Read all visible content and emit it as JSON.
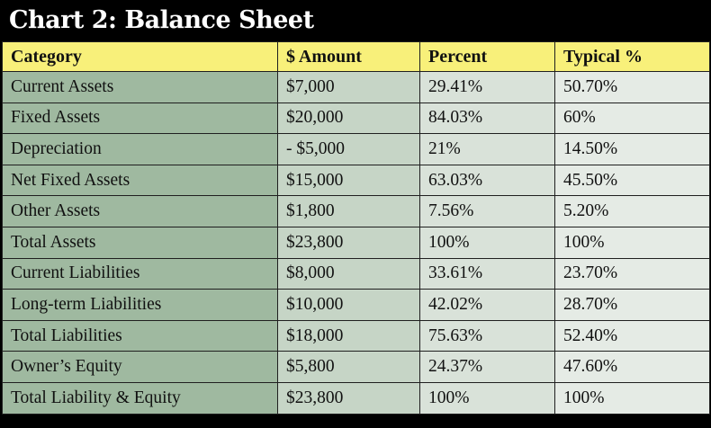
{
  "chart_data": {
    "type": "table",
    "title": "Chart 2: Balance Sheet",
    "columns": [
      "Category",
      "$ Amount",
      "Percent",
      "Typical %"
    ],
    "rows": [
      [
        "Current Assets",
        "$7,000",
        "29.41%",
        "50.70%"
      ],
      [
        "Fixed Assets",
        "$20,000",
        "84.03%",
        "60%"
      ],
      [
        "Depreciation",
        "- $5,000",
        "21%",
        "14.50%"
      ],
      [
        "Net Fixed Assets",
        "$15,000",
        "63.03%",
        "45.50%"
      ],
      [
        "Other Assets",
        "$1,800",
        "7.56%",
        "5.20%"
      ],
      [
        "Total Assets",
        "$23,800",
        "100%",
        "100%"
      ],
      [
        "Current Liabilities",
        "$8,000",
        "33.61%",
        "23.70%"
      ],
      [
        "Long-term Liabilities",
        "$10,000",
        "42.02%",
        "28.70%"
      ],
      [
        "Total Liabilities",
        "$18,000",
        "75.63%",
        "52.40%"
      ],
      [
        "Owner’s Equity",
        "$5,800",
        "24.37%",
        "47.60%"
      ],
      [
        "Total Liability & Equity",
        "$23,800",
        "100%",
        "100%"
      ]
    ]
  },
  "colors": {
    "background": "#000000",
    "header_fill": "#f8f07a",
    "category_fill": "#9fb9a0",
    "amount_fill": "#c6d5c6",
    "percent_fill": "#d9e2d9",
    "typical_fill": "#e5ebe5"
  }
}
